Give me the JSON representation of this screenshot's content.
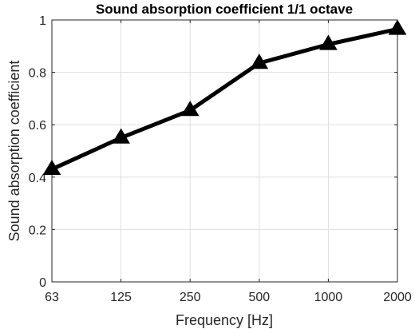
{
  "chart_data": {
    "type": "line",
    "title": "Sound absorption coefficient 1/1 octave",
    "xlabel": "Frequency [Hz]",
    "ylabel": "Sound absorption coefficient",
    "categories": [
      "63",
      "125",
      "250",
      "500",
      "1000",
      "2000"
    ],
    "series": [
      {
        "values": [
          0.43,
          0.55,
          0.655,
          0.835,
          0.907,
          0.965
        ],
        "marker": "triangle",
        "color": "#000000"
      }
    ],
    "ylim": [
      0,
      1
    ],
    "yticks": [
      0,
      0.2,
      0.4,
      0.6,
      0.8,
      1
    ],
    "ytick_labels": [
      "0",
      "0.2",
      "0.4",
      "0.6",
      "0.8",
      "1"
    ],
    "grid": true,
    "legend": "none"
  }
}
